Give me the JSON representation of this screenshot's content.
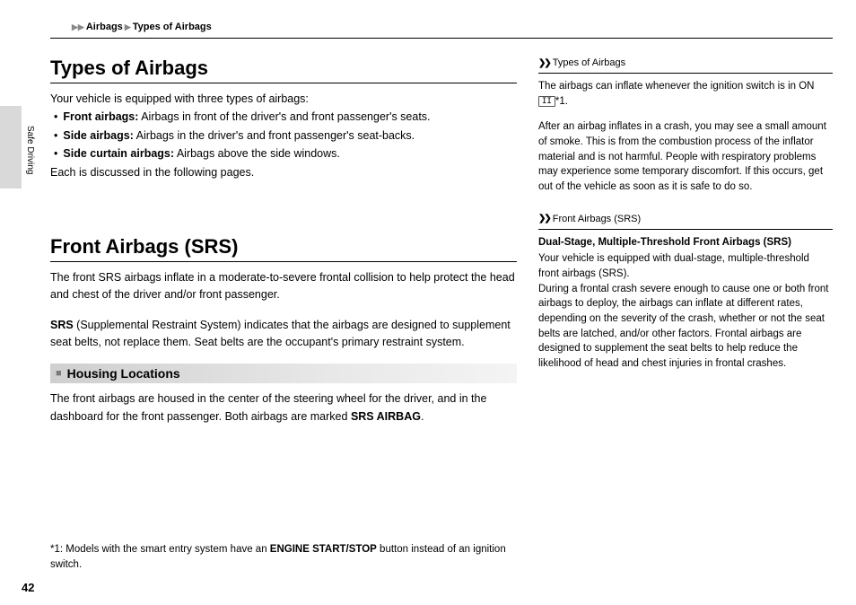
{
  "breadcrumb": {
    "a": "Airbags",
    "b": "Types of Airbags"
  },
  "sideTab": "Safe Driving",
  "pageNumber": "42",
  "sec1": {
    "title": "Types of Airbags",
    "intro": "Your vehicle is equipped with three types of airbags:",
    "bullets": [
      {
        "label": "Front airbags:",
        "text": " Airbags in front of the driver's and front passenger's seats."
      },
      {
        "label": "Side airbags:",
        "text": " Airbags in the driver's and front passenger's seat-backs."
      },
      {
        "label": "Side curtain airbags:",
        "text": " Airbags above the side windows."
      }
    ],
    "outro": "Each is discussed in the following pages."
  },
  "sec2": {
    "title": "Front Airbags (SRS)",
    "p1": "The front SRS airbags inflate in a moderate-to-severe frontal collision to help protect the head and chest of the driver and/or front passenger.",
    "p2a": "SRS",
    "p2b": " (Supplemental Restraint System) indicates that the airbags are designed to supplement seat belts, not replace them. Seat belts are the occupant's primary restraint system.",
    "sub": "Housing Locations",
    "p3a": "The front airbags are housed in the center of the steering wheel for the driver, and in the dashboard for the front passenger. Both airbags are marked ",
    "p3b": "SRS AIRBAG",
    "p3c": "."
  },
  "side1": {
    "header": "Types of Airbags",
    "p1a": "The airbags can inflate whenever the ignition switch is in ON ",
    "p1_box": "II",
    "p1b": "*1.",
    "p2": "After an airbag inflates in a crash, you may see a small amount of smoke. This is from the combustion process of the inflator material and is not harmful. People with respiratory problems may experience some temporary discomfort. If this occurs, get out of the vehicle as soon as it is safe to do so."
  },
  "side2": {
    "header": "Front Airbags (SRS)",
    "title": "Dual-Stage, Multiple-Threshold Front Airbags (SRS)",
    "p1": "Your vehicle is equipped with dual-stage, multiple-threshold front airbags (SRS).",
    "p2": "During a frontal crash severe enough to cause one or both front airbags to deploy, the airbags can inflate at different rates, depending on the severity of the crash, whether or not the seat belts are latched, and/or other factors. Frontal airbags are designed to supplement the seat belts to help reduce the likelihood of head and chest injuries in frontal crashes."
  },
  "footnote": {
    "a": "*1: Models with the smart entry system have an ",
    "b": "ENGINE START/STOP",
    "c": " button instead of an ignition switch."
  }
}
